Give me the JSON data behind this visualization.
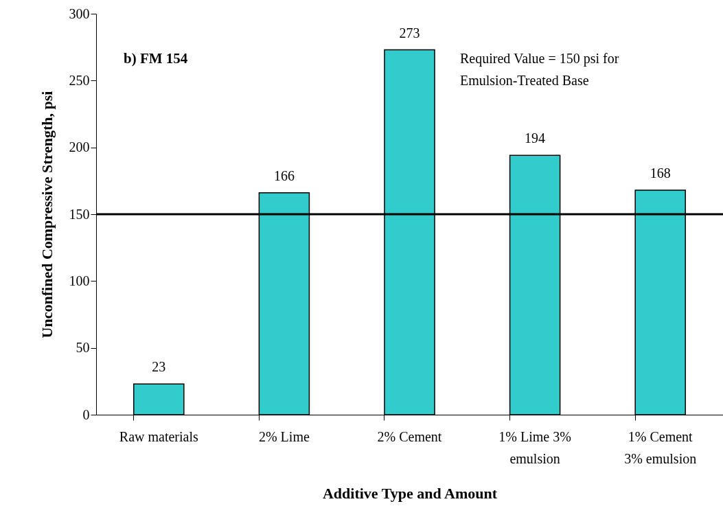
{
  "chart_data": {
    "type": "bar",
    "xlabel": "Additive Type and Amount",
    "ylabel": "Unconfined Compressive Strength, psi",
    "categories": [
      "Raw materials",
      "2% Lime",
      "2% Cement",
      "1%  Lime 3%\nemulsion",
      "1%  Cement\n3% emulsion"
    ],
    "values": [
      23,
      166,
      273,
      194,
      168
    ],
    "color": "#33cccc",
    "data_labels": true,
    "ylim": [
      0,
      300
    ],
    "yticks": [
      0,
      50,
      100,
      150,
      200,
      250,
      300
    ],
    "grid": false,
    "ref_lines": [
      {
        "axis": "y",
        "value": 150,
        "color": "#000000",
        "line_style": "solid"
      }
    ],
    "annotations": [
      "b) FM 154",
      "Required Value = 150 psi for\nEmulsion-Treated Base"
    ]
  }
}
